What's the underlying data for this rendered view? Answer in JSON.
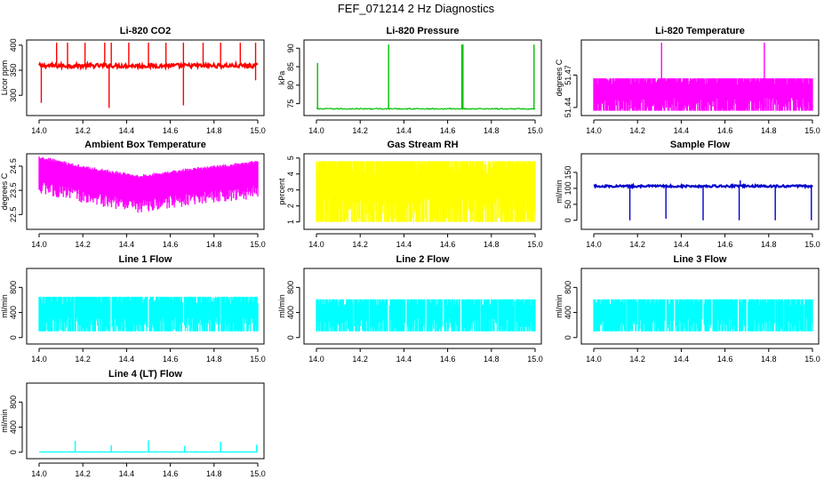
{
  "figure": {
    "title": "FEF_071214  2 Hz Diagnostics"
  },
  "chart_data": [
    {
      "type": "line",
      "title": "Li-820 CO2",
      "xlabel": "",
      "ylabel": "Licor ppm",
      "color": "#ff0000",
      "xlim": [
        14.0,
        15.0
      ],
      "ylim": [
        265,
        405
      ],
      "x_ticks": [
        "14.0",
        "14.2",
        "14.4",
        "14.6",
        "14.8",
        "15.0"
      ],
      "y_ticks": [
        {
          "value": 300,
          "label": "300"
        },
        {
          "value": 350,
          "label": "350"
        },
        {
          "value": 400,
          "label": "400"
        }
      ],
      "base": 359,
      "noise": 4,
      "density": 1,
      "spikes": [
        {
          "x": 14.08,
          "y": 405
        },
        {
          "x": 14.13,
          "y": 405
        },
        {
          "x": 14.21,
          "y": 405
        },
        {
          "x": 14.3,
          "y": 405
        },
        {
          "x": 14.33,
          "y": 405
        },
        {
          "x": 14.41,
          "y": 405
        },
        {
          "x": 14.5,
          "y": 405
        },
        {
          "x": 14.58,
          "y": 405
        },
        {
          "x": 14.66,
          "y": 405
        },
        {
          "x": 14.75,
          "y": 405
        },
        {
          "x": 14.83,
          "y": 405
        },
        {
          "x": 14.92,
          "y": 405
        },
        {
          "x": 14.99,
          "y": 405
        },
        {
          "x": 14.01,
          "y": 285
        },
        {
          "x": 14.32,
          "y": 275
        },
        {
          "x": 14.66,
          "y": 280
        },
        {
          "x": 14.99,
          "y": 330
        }
      ]
    },
    {
      "type": "line",
      "title": "Li-820 Pressure",
      "xlabel": "",
      "ylabel": "kPa",
      "color": "#00c000",
      "xlim": [
        14.0,
        15.0
      ],
      "ylim": [
        72.5,
        91.5
      ],
      "x_ticks": [
        "14.0",
        "14.2",
        "14.4",
        "14.6",
        "14.8",
        "15.0"
      ],
      "y_ticks": [
        {
          "value": 75,
          "label": "75"
        },
        {
          "value": 80,
          "label": "80"
        },
        {
          "value": 85,
          "label": "85"
        },
        {
          "value": 90,
          "label": "90"
        }
      ],
      "base": 73.6,
      "noise": 0.15,
      "density": 0,
      "spikes": [
        {
          "x": 14.005,
          "y": 86
        },
        {
          "x": 14.33,
          "y": 91
        },
        {
          "x": 14.665,
          "y": 91
        },
        {
          "x": 14.67,
          "y": 91
        },
        {
          "x": 14.995,
          "y": 91
        }
      ]
    },
    {
      "type": "line",
      "title": "Li-820 Temperature",
      "xlabel": "",
      "ylabel": "degrees C",
      "color": "#ff00ff",
      "xlim": [
        14.0,
        15.0
      ],
      "ylim": [
        51.435,
        51.5
      ],
      "x_ticks": [
        "14.0",
        "14.2",
        "14.4",
        "14.6",
        "14.8",
        "15.0"
      ],
      "y_ticks": [
        {
          "value": 51.44,
          "label": "51.44"
        },
        {
          "value": 51.47,
          "label": "51.47"
        }
      ],
      "base": 51.44,
      "band_low": 51.437,
      "band_high": 51.467,
      "density": 2,
      "spikes": [
        {
          "x": 14.31,
          "y": 51.5
        },
        {
          "x": 14.78,
          "y": 51.5
        }
      ]
    },
    {
      "type": "line",
      "title": "Ambient Box Temperature",
      "xlabel": "",
      "ylabel": "degrees C",
      "color": "#ff00ff",
      "xlim": [
        14.0,
        15.0
      ],
      "ylim": [
        22.0,
        24.9
      ],
      "x_ticks": [
        "14.0",
        "14.2",
        "14.4",
        "14.6",
        "14.8",
        "15.0"
      ],
      "y_ticks": [
        {
          "value": 22.5,
          "label": "22.5"
        },
        {
          "value": 23.5,
          "label": "23.5"
        },
        {
          "value": 24.5,
          "label": "24.5"
        }
      ],
      "trend": [
        [
          14.0,
          24.4
        ],
        [
          14.2,
          24.0
        ],
        [
          14.45,
          23.6
        ],
        [
          14.7,
          23.9
        ],
        [
          15.0,
          24.2
        ]
      ],
      "band": 0.9,
      "density": 2,
      "spikes": []
    },
    {
      "type": "line",
      "title": "Gas Stream RH",
      "xlabel": "",
      "ylabel": "percent",
      "color": "#ffff00",
      "xlim": [
        14.0,
        15.0
      ],
      "ylim": [
        0.7,
        5.1
      ],
      "x_ticks": [
        "14.0",
        "14.2",
        "14.4",
        "14.6",
        "14.8",
        "15.0"
      ],
      "y_ticks": [
        {
          "value": 1,
          "label": "1"
        },
        {
          "value": 2,
          "label": "2"
        },
        {
          "value": 3,
          "label": "3"
        },
        {
          "value": 4,
          "label": "4"
        },
        {
          "value": 5,
          "label": "5"
        }
      ],
      "band_low": 1.0,
      "band_high": 4.8,
      "density": 2,
      "spikes": []
    },
    {
      "type": "line",
      "title": "Sample Flow",
      "xlabel": "",
      "ylabel": "ml/min",
      "color": "#0000cc",
      "xlim": [
        14.0,
        15.0
      ],
      "ylim": [
        -20,
        200
      ],
      "x_ticks": [
        "14.0",
        "14.2",
        "14.4",
        "14.6",
        "14.8",
        "15.0"
      ],
      "y_ticks": [
        {
          "value": 0,
          "label": "0"
        },
        {
          "value": 50,
          "label": "50"
        },
        {
          "value": 100,
          "label": "100"
        },
        {
          "value": 150,
          "label": "150"
        }
      ],
      "base": 107,
      "noise": 3,
      "density": 1,
      "spikes": [
        {
          "x": 14.165,
          "y": 0
        },
        {
          "x": 14.33,
          "y": 5
        },
        {
          "x": 14.5,
          "y": 0
        },
        {
          "x": 14.665,
          "y": 0
        },
        {
          "x": 14.67,
          "y": 125
        },
        {
          "x": 14.83,
          "y": 0
        },
        {
          "x": 14.995,
          "y": 0
        }
      ]
    },
    {
      "type": "line",
      "title": "Line 1 Flow",
      "xlabel": "",
      "ylabel": "ml/min",
      "color": "#00ffff",
      "xlim": [
        14.0,
        15.0
      ],
      "ylim": [
        -60,
        1060
      ],
      "x_ticks": [
        "14.0",
        "14.2",
        "14.4",
        "14.6",
        "14.8",
        "15.0"
      ],
      "y_ticks": [
        {
          "value": 0,
          "label": "0"
        },
        {
          "value": 400,
          "label": "400"
        },
        {
          "value": 800,
          "label": "800"
        }
      ],
      "band_low": 100,
      "band_high": 650,
      "density": 1,
      "gaps": [
        14.16,
        14.33,
        14.5,
        14.66,
        14.83
      ],
      "spikes": []
    },
    {
      "type": "line",
      "title": "Line 2 Flow",
      "xlabel": "",
      "ylabel": "ml/min",
      "color": "#00ffff",
      "xlim": [
        14.0,
        15.0
      ],
      "ylim": [
        -60,
        1060
      ],
      "x_ticks": [
        "14.0",
        "14.2",
        "14.4",
        "14.6",
        "14.8",
        "15.0"
      ],
      "y_ticks": [
        {
          "value": 0,
          "label": "0"
        },
        {
          "value": 400,
          "label": "400"
        },
        {
          "value": 800,
          "label": "800"
        }
      ],
      "band_low": 100,
      "band_high": 610,
      "density": 1,
      "gaps": [
        14.17,
        14.24,
        14.33,
        14.41,
        14.5,
        14.58,
        14.66,
        14.75,
        14.83,
        14.91
      ],
      "spikes": []
    },
    {
      "type": "line",
      "title": "Line 3 Flow",
      "xlabel": "",
      "ylabel": "ml/min",
      "color": "#00ffff",
      "xlim": [
        14.0,
        15.0
      ],
      "ylim": [
        -60,
        1060
      ],
      "x_ticks": [
        "14.0",
        "14.2",
        "14.4",
        "14.6",
        "14.8",
        "15.0"
      ],
      "y_ticks": [
        {
          "value": 0,
          "label": "0"
        },
        {
          "value": 400,
          "label": "400"
        },
        {
          "value": 800,
          "label": "800"
        }
      ],
      "band_low": 100,
      "band_high": 610,
      "density": 1,
      "gaps": [
        14.15,
        14.2,
        14.33,
        14.37,
        14.5,
        14.54,
        14.66,
        14.7,
        14.83,
        14.87,
        14.96
      ],
      "spikes": []
    },
    {
      "type": "line",
      "title": "Line 4 (LT) Flow",
      "xlabel": "",
      "ylabel": "ml/min",
      "color": "#00ffff",
      "xlim": [
        14.0,
        15.0
      ],
      "ylim": [
        -60,
        1060
      ],
      "x_ticks": [
        "14.0",
        "14.2",
        "14.4",
        "14.6",
        "14.8",
        "15.0"
      ],
      "y_ticks": [
        {
          "value": 0,
          "label": "0"
        },
        {
          "value": 400,
          "label": "400"
        },
        {
          "value": 800,
          "label": "800"
        }
      ],
      "base": 5,
      "noise": 3,
      "density": 0,
      "spikes": [
        {
          "x": 14.165,
          "y": 180
        },
        {
          "x": 14.33,
          "y": 110
        },
        {
          "x": 14.5,
          "y": 190
        },
        {
          "x": 14.665,
          "y": 100
        },
        {
          "x": 14.83,
          "y": 170
        },
        {
          "x": 14.995,
          "y": 120
        }
      ]
    }
  ]
}
